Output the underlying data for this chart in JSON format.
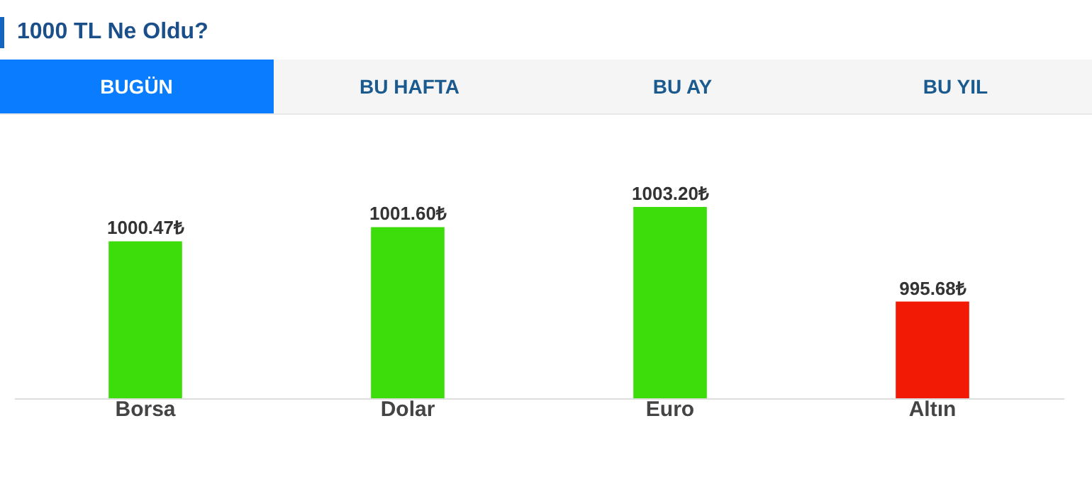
{
  "chart_data": {
    "type": "bar",
    "title": "1000 TL Ne Oldu?",
    "annotations": [
      "BUGÜN",
      "BU HAFTA",
      "BU AY",
      "BU YIL"
    ],
    "categories": [
      "Borsa",
      "Dolar",
      "Euro",
      "Altın"
    ],
    "values": [
      1000.47,
      1001.6,
      1003.2,
      995.68
    ],
    "colors": [
      "#3ddc0b",
      "#3ddc0b",
      "#3ddc0b",
      "#f21a05"
    ],
    "value_labels": [
      "1000.47₺",
      "1001.60₺",
      "1003.20₺",
      "995.68₺"
    ],
    "ylim": [
      988,
      1003.2
    ],
    "tick_labels": "x",
    "legend": false
  }
}
